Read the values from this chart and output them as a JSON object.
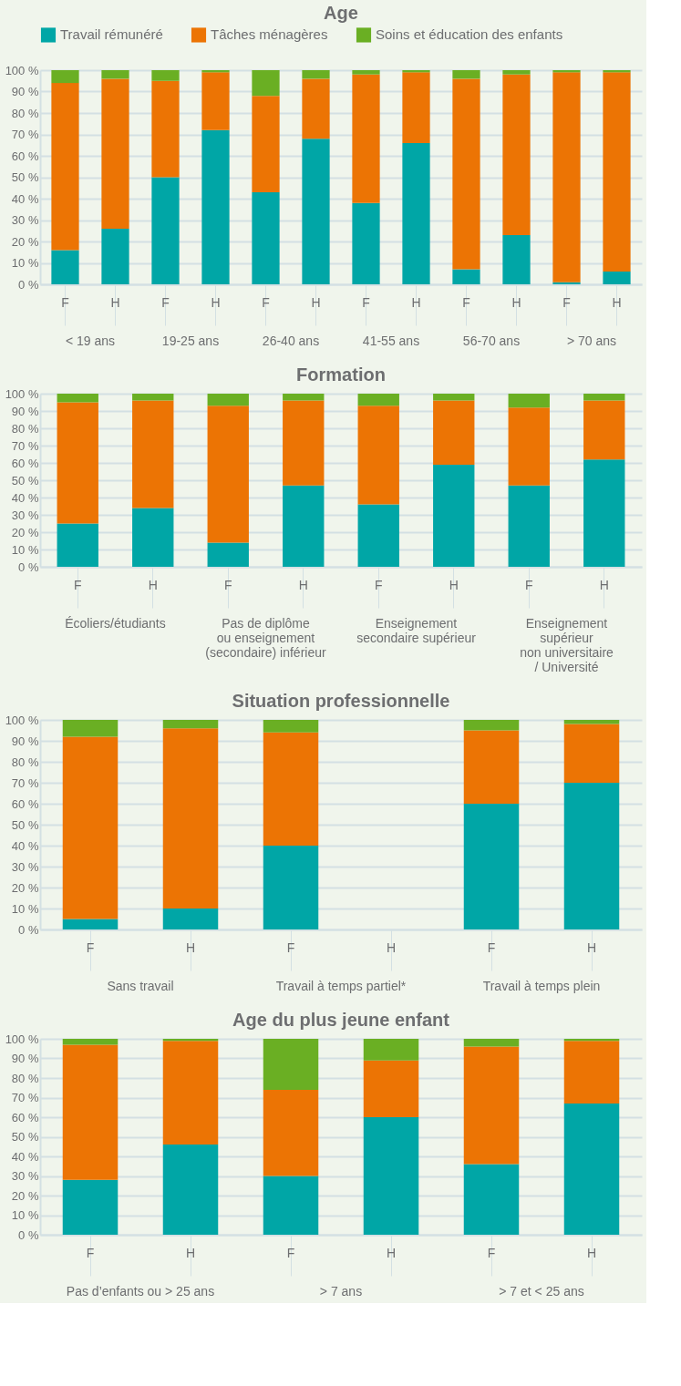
{
  "chart_data": [
    {
      "type": "bar",
      "stacked": true,
      "title": "Age",
      "legend": "top",
      "grid": "y",
      "categories": [
        "F",
        "H",
        "F",
        "H",
        "F",
        "H",
        "F",
        "H",
        "F",
        "H",
        "F",
        "H"
      ],
      "annotations": [
        "< 19 ans",
        "19-25 ans",
        "26-40 ans",
        "41-55 ans",
        "56-70 ans",
        "> 70 ans"
      ],
      "ylim": [
        0,
        100
      ],
      "yticks": [
        {
          "value": 0,
          "label": "0 %"
        },
        {
          "value": 10,
          "label": "10 %"
        },
        {
          "value": 20,
          "label": "20 %"
        },
        {
          "value": 30,
          "label": "30 %"
        },
        {
          "value": 40,
          "label": "40 %"
        },
        {
          "value": 50,
          "label": "50 %"
        },
        {
          "value": 60,
          "label": "60 %"
        },
        {
          "value": 70,
          "label": "70 %"
        },
        {
          "value": 80,
          "label": "80 %"
        },
        {
          "value": 90,
          "label": "90 %"
        },
        {
          "value": 100,
          "label": "100 %"
        }
      ],
      "series": [
        {
          "name": "Travail rémunéré",
          "color": "#00a6a6",
          "values": [
            16,
            26,
            50,
            72,
            43,
            68,
            38,
            66,
            7,
            23,
            1,
            6
          ]
        },
        {
          "name": "Tâches ménagères",
          "color": "#ec7404",
          "values": [
            78,
            70,
            45,
            27,
            45,
            28,
            60,
            33,
            89,
            75,
            98,
            93
          ]
        },
        {
          "name": "Soins et éducation des enfants",
          "color": "#6aaf23",
          "values": [
            6,
            4,
            5,
            1,
            12,
            4,
            2,
            1,
            4,
            2,
            1,
            1
          ]
        }
      ]
    },
    {
      "type": "bar",
      "stacked": true,
      "title": "Formation",
      "grid": "y",
      "categories": [
        "F",
        "H",
        "F",
        "H",
        "F",
        "H",
        "F",
        "H"
      ],
      "annotations": [
        "Écoliers/étudiants",
        "Pas de diplôme\nou enseignement\n(secondaire) inférieur",
        "Enseignement\nsecondaire supérieur",
        "Enseignement\nsupérieur\nnon universitaire\n/ Université"
      ],
      "ylim": [
        0,
        100
      ],
      "yticks": [
        {
          "value": 0,
          "label": "0 %"
        },
        {
          "value": 10,
          "label": "10 %"
        },
        {
          "value": 20,
          "label": "20 %"
        },
        {
          "value": 30,
          "label": "30 %"
        },
        {
          "value": 40,
          "label": "40 %"
        },
        {
          "value": 50,
          "label": "50 %"
        },
        {
          "value": 60,
          "label": "60 %"
        },
        {
          "value": 70,
          "label": "70 %"
        },
        {
          "value": 80,
          "label": "80 %"
        },
        {
          "value": 90,
          "label": "90 %"
        },
        {
          "value": 100,
          "label": "100 %"
        }
      ],
      "series": [
        {
          "color": "#00a6a6",
          "values": [
            25,
            34,
            14,
            47,
            36,
            59,
            47,
            62
          ]
        },
        {
          "color": "#ec7404",
          "values": [
            70,
            62,
            79,
            49,
            57,
            37,
            45,
            34
          ]
        },
        {
          "color": "#6aaf23",
          "values": [
            5,
            4,
            7,
            4,
            7,
            4,
            8,
            4
          ]
        }
      ]
    },
    {
      "type": "bar",
      "stacked": true,
      "title": "Situation professionnelle",
      "grid": "y",
      "categories": [
        "F",
        "H",
        "F",
        "H",
        "F",
        "H"
      ],
      "annotations": [
        "Sans travail",
        "Travail à temps partiel*",
        "Travail à temps plein"
      ],
      "ylim": [
        0,
        100
      ],
      "yticks": [
        {
          "value": 0,
          "label": "0 %"
        },
        {
          "value": 10,
          "label": "10 %"
        },
        {
          "value": 20,
          "label": "20 %"
        },
        {
          "value": 30,
          "label": "30 %"
        },
        {
          "value": 40,
          "label": "40 %"
        },
        {
          "value": 50,
          "label": "50 %"
        },
        {
          "value": 60,
          "label": "60 %"
        },
        {
          "value": 70,
          "label": "70 %"
        },
        {
          "value": 80,
          "label": "80 %"
        },
        {
          "value": 90,
          "label": "90 %"
        },
        {
          "value": 100,
          "label": "100 %"
        }
      ],
      "series": [
        {
          "color": "#00a6a6",
          "values": [
            5,
            10,
            40,
            null,
            60,
            70
          ]
        },
        {
          "color": "#ec7404",
          "values": [
            87,
            86,
            54,
            null,
            35,
            28
          ]
        },
        {
          "color": "#6aaf23",
          "values": [
            8,
            4,
            6,
            null,
            5,
            2
          ]
        }
      ]
    },
    {
      "type": "bar",
      "stacked": true,
      "title": "Age du plus jeune enfant",
      "grid": "y",
      "categories": [
        "F",
        "H",
        "F",
        "H",
        "F",
        "H"
      ],
      "annotations": [
        "Pas d’enfants ou > 25 ans",
        "> 7 ans",
        "> 7 et < 25 ans"
      ],
      "ylim": [
        0,
        100
      ],
      "yticks": [
        {
          "value": 0,
          "label": "0 %"
        },
        {
          "value": 10,
          "label": "10 %"
        },
        {
          "value": 20,
          "label": "20 %"
        },
        {
          "value": 30,
          "label": "30 %"
        },
        {
          "value": 40,
          "label": "40 %"
        },
        {
          "value": 50,
          "label": "50 %"
        },
        {
          "value": 60,
          "label": "60 %"
        },
        {
          "value": 70,
          "label": "70 %"
        },
        {
          "value": 80,
          "label": "80 %"
        },
        {
          "value": 90,
          "label": "90 %"
        },
        {
          "value": 100,
          "label": "100 %"
        }
      ],
      "series": [
        {
          "color": "#00a6a6",
          "values": [
            28,
            46,
            30,
            60,
            36,
            67
          ]
        },
        {
          "color": "#ec7404",
          "values": [
            69,
            53,
            44,
            29,
            60,
            32
          ]
        },
        {
          "color": "#6aaf23",
          "values": [
            3,
            1,
            26,
            11,
            4,
            1
          ]
        }
      ]
    }
  ]
}
